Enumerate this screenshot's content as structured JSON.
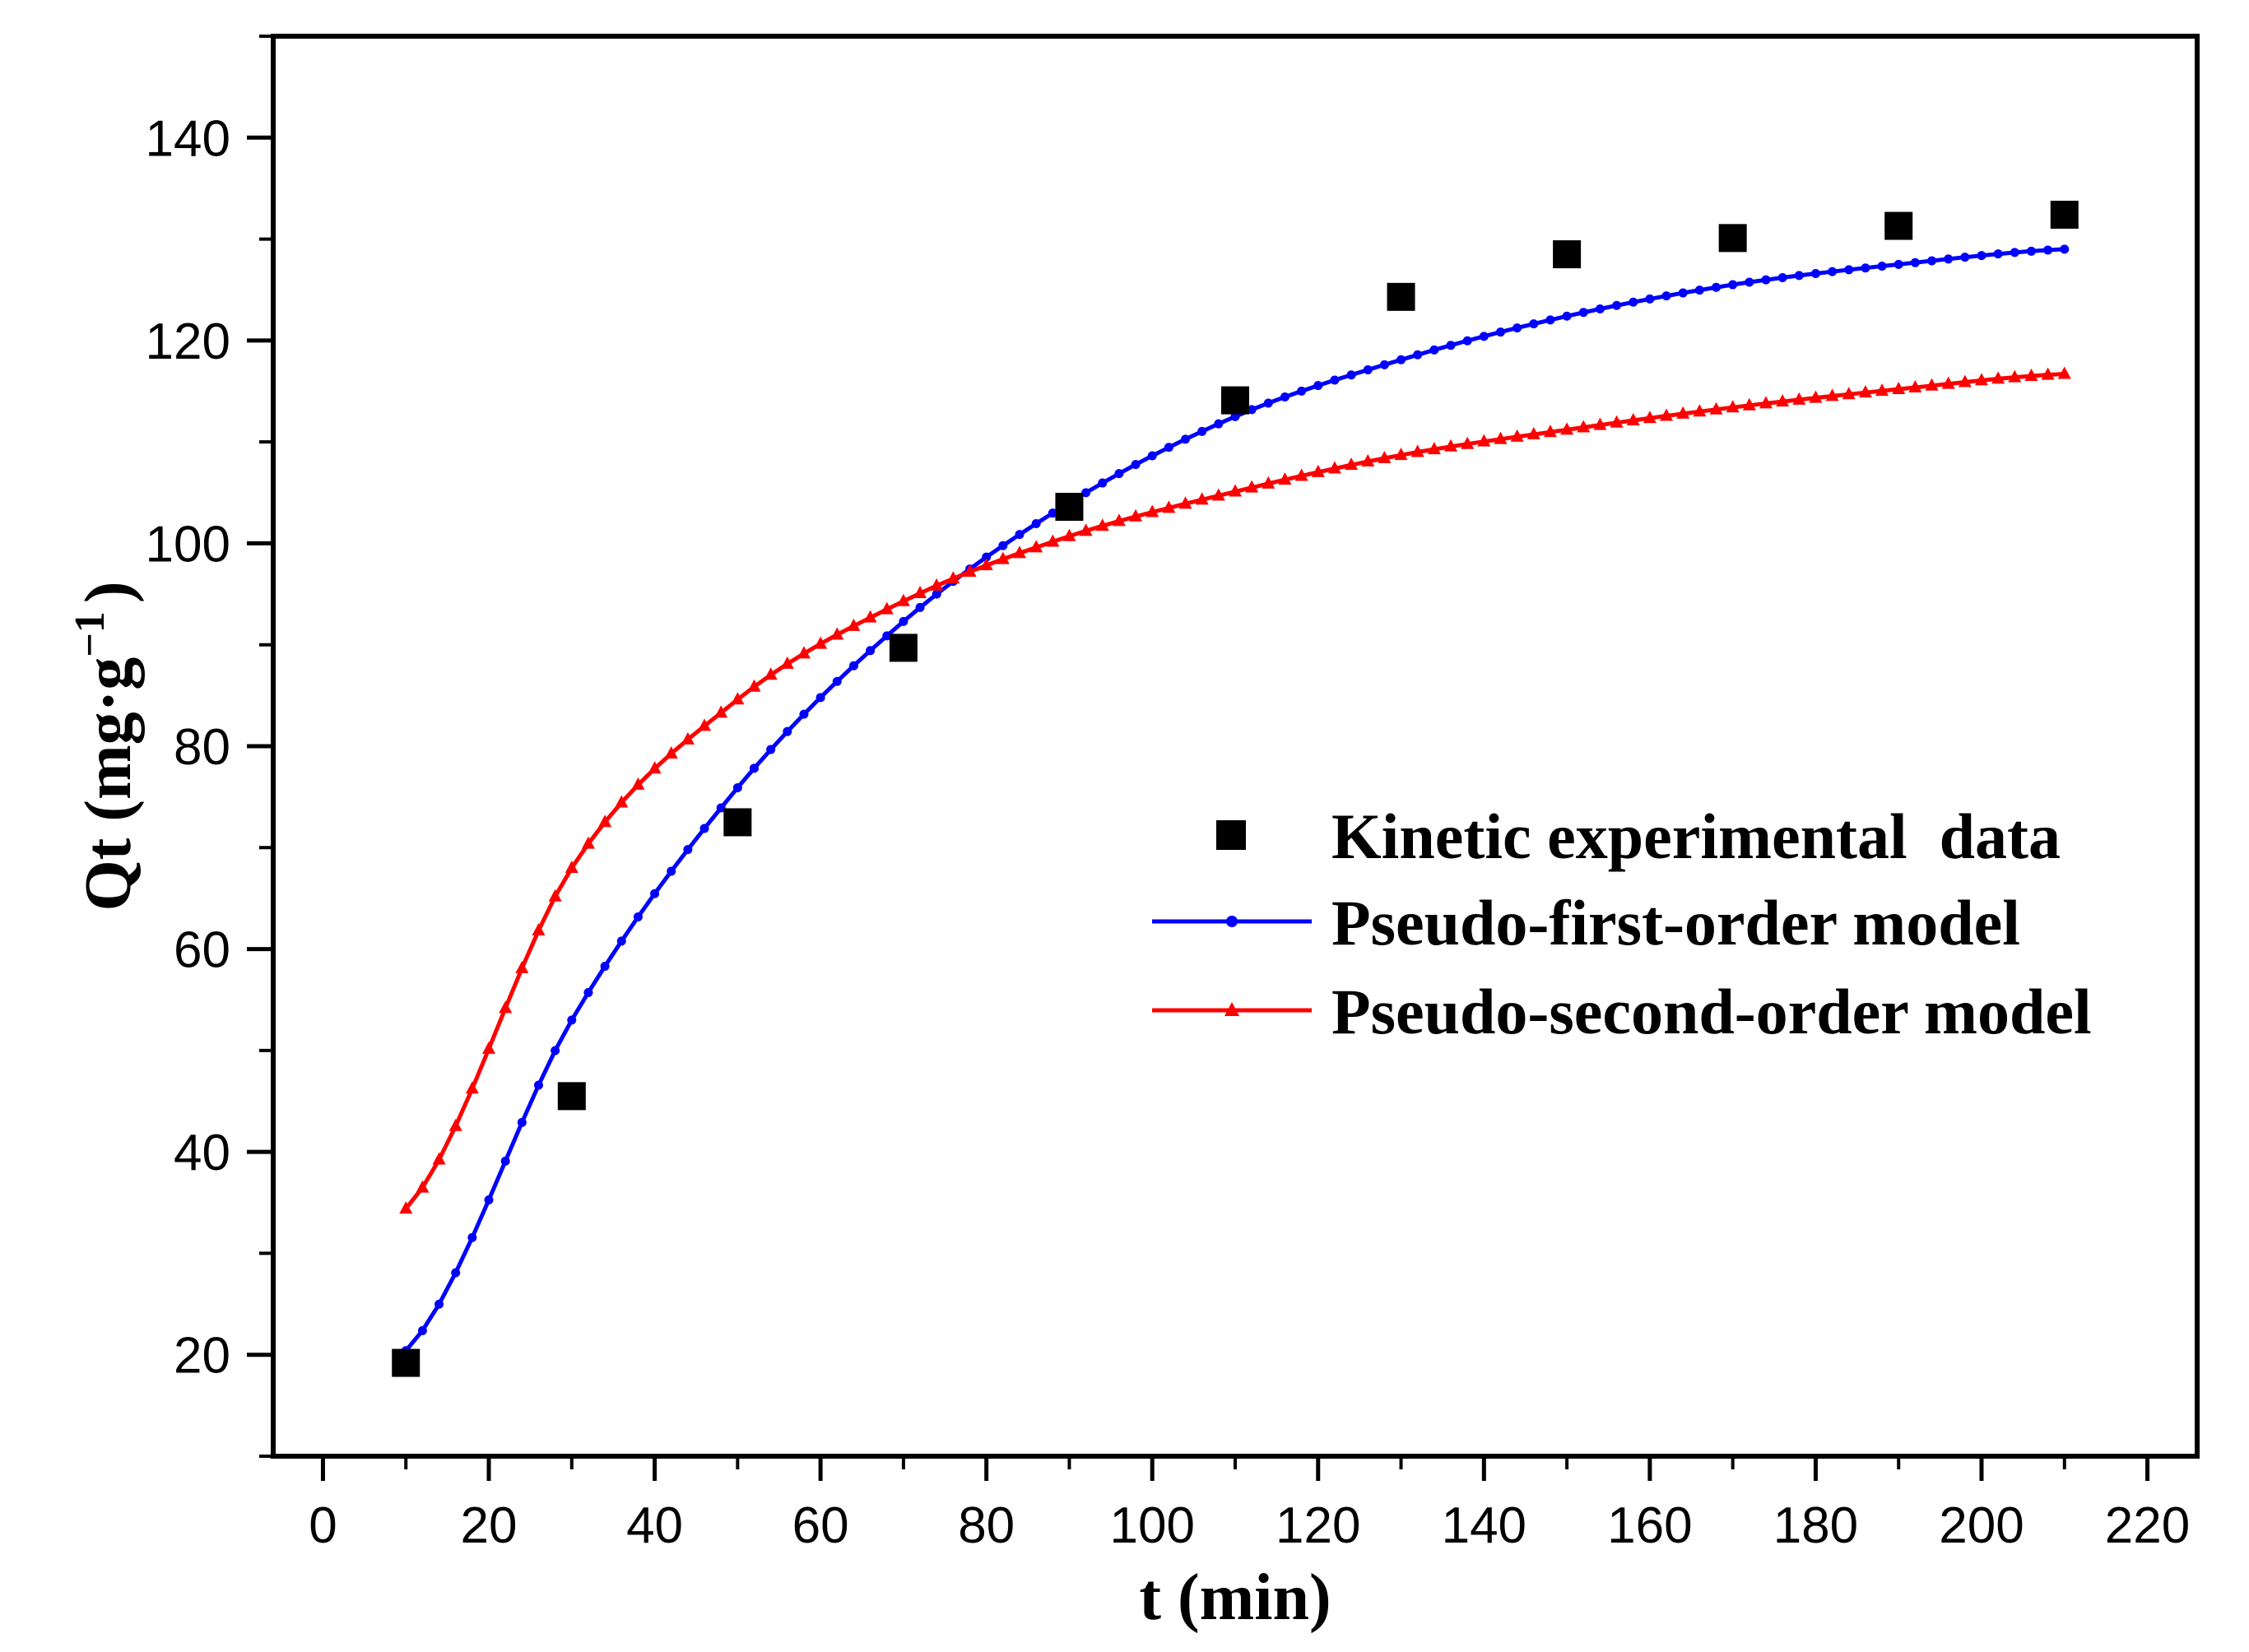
{
  "chart_data": {
    "type": "scatter",
    "xlabel": "t (min)",
    "ylabel": {
      "main": "Qt (mg·g",
      "sup": "−1",
      "close": ")"
    },
    "xlim": [
      -6,
      226
    ],
    "ylim": [
      10,
      150
    ],
    "xticks": [
      0,
      20,
      40,
      60,
      80,
      100,
      120,
      140,
      160,
      180,
      200,
      220
    ],
    "yticks": [
      20,
      40,
      60,
      80,
      100,
      120,
      140
    ],
    "xtick_labels": [
      "0",
      "20",
      "40",
      "60",
      "80",
      "100",
      "120",
      "140",
      "160",
      "180",
      "200",
      "220"
    ],
    "ytick_labels": [
      "20",
      "40",
      "60",
      "80",
      "100",
      "120",
      "140"
    ],
    "grid": false,
    "legend_position": "right-middle",
    "series": [
      {
        "name": "Kinetic experimental  data",
        "kind": "points",
        "marker": "square",
        "color": "#000000",
        "x": [
          10,
          30,
          50,
          70,
          90,
          110,
          130,
          150,
          170,
          190,
          210
        ],
        "y": [
          19.2,
          45.5,
          72.5,
          89.7,
          103.6,
          114.1,
          124.3,
          128.5,
          130.1,
          131.3,
          132.4
        ]
      },
      {
        "name": "Pseudo-first-order model",
        "kind": "model",
        "model": "pfo",
        "marker": "dot",
        "color": "#0000ff",
        "x_start": 10,
        "x_end": 210,
        "step": 2,
        "x": [
          10,
          30,
          50,
          70,
          90,
          110,
          130,
          150,
          170,
          190,
          210
        ],
        "y": [
          20.4,
          53.0,
          75.9,
          92.3,
          104.0,
          112.5,
          118.1,
          122.4,
          125.5,
          127.5,
          129.0
        ]
      },
      {
        "name": "Pseudo-second-order model",
        "kind": "model",
        "model": "pso",
        "marker": "triangle",
        "color": "#ff0000",
        "x_start": 10,
        "x_end": 210,
        "step": 2,
        "x": [
          10,
          30,
          50,
          70,
          90,
          110,
          130,
          150,
          170,
          190,
          210
        ],
        "y": [
          34.4,
          68.0,
          84.6,
          94.3,
          100.7,
          105.1,
          108.7,
          111.2,
          113.4,
          115.2,
          116.7
        ]
      }
    ]
  }
}
